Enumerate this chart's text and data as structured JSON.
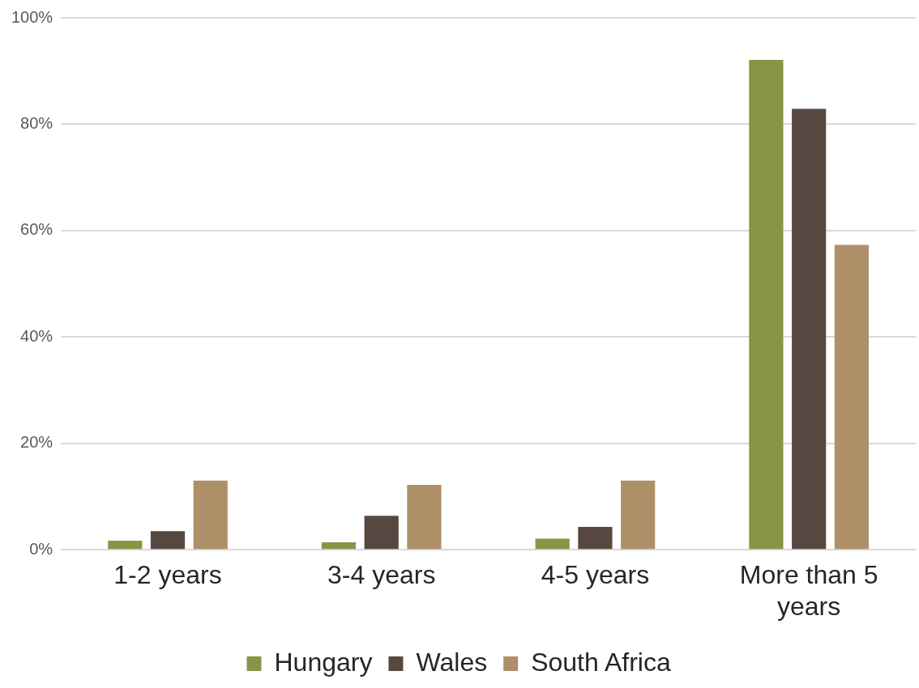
{
  "chart_data": {
    "type": "bar",
    "categories": [
      "1-2 years",
      "3-4 years",
      "4-5 years",
      "More than 5 years"
    ],
    "series": [
      {
        "name": "Hungary",
        "color": "#8a9446",
        "values": [
          1.7,
          1.4,
          2.1,
          92.1
        ]
      },
      {
        "name": "Wales",
        "color": "#564840",
        "values": [
          3.5,
          6.4,
          4.3,
          82.9
        ]
      },
      {
        "name": "South Africa",
        "color": "#ae9068",
        "values": [
          13.0,
          12.2,
          13.0,
          57.3
        ]
      }
    ],
    "ylim": [
      0,
      100
    ],
    "yticks": [
      {
        "value": 0,
        "label": "0%"
      },
      {
        "value": 20,
        "label": "20%"
      },
      {
        "value": 40,
        "label": "40%"
      },
      {
        "value": 60,
        "label": "60%"
      },
      {
        "value": 80,
        "label": "80%"
      },
      {
        "value": 100,
        "label": "100%"
      }
    ],
    "grid": "y",
    "legend": "bottom"
  }
}
